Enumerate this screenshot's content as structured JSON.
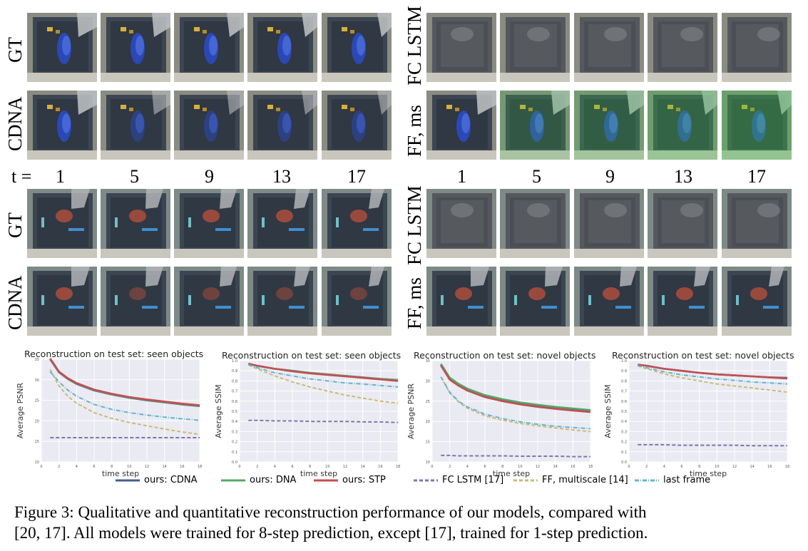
{
  "figure": {
    "row_labels_left": [
      "GT",
      "CDNA",
      "GT",
      "CDNA"
    ],
    "row_labels_right": [
      "FC LSTM",
      "FF, ms",
      "FC LSTM",
      "FF, ms"
    ],
    "t_prefix": "t =",
    "timesteps": [
      "1",
      "5",
      "9",
      "13",
      "17"
    ]
  },
  "colors": {
    "cdna": "#3f5e8c",
    "dna": "#55a868",
    "stp": "#c44e52",
    "fclstm": "#8172b2",
    "ff": "#ccb974",
    "last": "#64b5cd",
    "plot_bg": "#eaeaf2"
  },
  "chart_data": [
    {
      "type": "line",
      "title": "Reconstruction on test set: seen objects",
      "xlabel": "time step",
      "ylabel": "Average PSNR",
      "ylim": [
        10,
        35
      ],
      "xlim": [
        0,
        18
      ],
      "yticks": [
        "10",
        "15",
        "20",
        "25",
        "30",
        "35"
      ],
      "xticks": [
        "0",
        "2",
        "4",
        "6",
        "8",
        "10",
        "12",
        "14",
        "16",
        "18"
      ],
      "x": [
        1,
        2,
        3,
        4,
        6,
        8,
        10,
        12,
        14,
        16,
        18
      ],
      "series": [
        {
          "name": "ours: CDNA",
          "color": "cdna",
          "dash": "",
          "values": [
            35.0,
            31.8,
            30.2,
            29.0,
            27.4,
            26.4,
            25.6,
            25.0,
            24.5,
            24.0,
            23.6
          ]
        },
        {
          "name": "ours: DNA",
          "color": "dna",
          "dash": "",
          "values": [
            35.1,
            31.9,
            30.3,
            29.1,
            27.5,
            26.5,
            25.7,
            25.1,
            24.6,
            24.1,
            23.7
          ]
        },
        {
          "name": "ours: STP",
          "color": "stp",
          "dash": "",
          "values": [
            35.2,
            32.0,
            30.4,
            29.2,
            27.6,
            26.6,
            25.8,
            25.2,
            24.7,
            24.2,
            23.8
          ]
        },
        {
          "name": "FC LSTM [17]",
          "color": "fclstm",
          "dash": "5,3",
          "values": [
            15.9,
            15.9,
            15.9,
            15.9,
            15.9,
            15.9,
            15.9,
            15.9,
            15.9,
            15.9,
            15.9
          ]
        },
        {
          "name": "FF, multiscale [14]",
          "color": "ff",
          "dash": "5,3",
          "values": [
            32.5,
            28.5,
            26.0,
            24.3,
            22.0,
            20.6,
            19.6,
            18.8,
            18.0,
            17.3,
            16.7
          ]
        },
        {
          "name": "last frame",
          "color": "last",
          "dash": "6,2,1,2",
          "values": [
            32.0,
            29.5,
            27.5,
            26.0,
            24.0,
            22.8,
            22.0,
            21.4,
            20.9,
            20.5,
            20.1
          ]
        }
      ]
    },
    {
      "type": "line",
      "title": "Reconstruction on test set: seen objects",
      "xlabel": "time step",
      "ylabel": "Average SSIM",
      "ylim": [
        0.0,
        1.0
      ],
      "xlim": [
        0,
        18
      ],
      "yticks": [
        "0.0",
        "0.1",
        "0.2",
        "0.3",
        "0.4",
        "0.5",
        "0.6",
        "0.7",
        "0.8",
        "0.9",
        "1.0"
      ],
      "xticks": [
        "0",
        "2",
        "4",
        "6",
        "8",
        "10",
        "12",
        "14",
        "16",
        "18"
      ],
      "x": [
        1,
        2,
        4,
        6,
        8,
        10,
        12,
        14,
        16,
        18
      ],
      "series": [
        {
          "name": "ours: CDNA",
          "color": "cdna",
          "dash": "",
          "values": [
            0.97,
            0.95,
            0.92,
            0.9,
            0.88,
            0.865,
            0.85,
            0.835,
            0.82,
            0.81
          ]
        },
        {
          "name": "ours: DNA",
          "color": "dna",
          "dash": "",
          "values": [
            0.97,
            0.95,
            0.92,
            0.9,
            0.88,
            0.865,
            0.85,
            0.835,
            0.82,
            0.81
          ]
        },
        {
          "name": "ours: STP",
          "color": "stp",
          "dash": "",
          "values": [
            0.97,
            0.95,
            0.92,
            0.895,
            0.875,
            0.86,
            0.845,
            0.83,
            0.815,
            0.8
          ]
        },
        {
          "name": "FC LSTM [17]",
          "color": "fclstm",
          "dash": "5,3",
          "values": [
            0.41,
            0.41,
            0.405,
            0.405,
            0.4,
            0.4,
            0.4,
            0.395,
            0.395,
            0.39
          ]
        },
        {
          "name": "FF, multiscale [14]",
          "color": "ff",
          "dash": "5,3",
          "values": [
            0.96,
            0.92,
            0.85,
            0.79,
            0.74,
            0.7,
            0.66,
            0.63,
            0.6,
            0.58
          ]
        },
        {
          "name": "last frame",
          "color": "last",
          "dash": "6,2,1,2",
          "values": [
            0.96,
            0.93,
            0.88,
            0.85,
            0.82,
            0.8,
            0.78,
            0.77,
            0.755,
            0.74
          ]
        }
      ]
    },
    {
      "type": "line",
      "title": "Reconstruction on test set: novel objects",
      "xlabel": "time step",
      "ylabel": "Average PSNR",
      "ylim": [
        10,
        35
      ],
      "xlim": [
        0,
        18
      ],
      "yticks": [
        "10",
        "15",
        "20",
        "25",
        "30",
        "35"
      ],
      "xticks": [
        "0",
        "2",
        "4",
        "6",
        "8",
        "10",
        "12",
        "14",
        "16",
        "18"
      ],
      "x": [
        1,
        2,
        3,
        4,
        6,
        8,
        10,
        12,
        14,
        16,
        18
      ],
      "series": [
        {
          "name": "ours: CDNA",
          "color": "cdna",
          "dash": "",
          "values": [
            34.0,
            30.5,
            29.0,
            27.8,
            26.2,
            25.2,
            24.4,
            23.8,
            23.3,
            22.9,
            22.5
          ]
        },
        {
          "name": "ours: DNA",
          "color": "dna",
          "dash": "",
          "values": [
            34.2,
            30.8,
            29.3,
            28.1,
            26.5,
            25.5,
            24.7,
            24.1,
            23.6,
            23.2,
            22.8
          ]
        },
        {
          "name": "ours: STP",
          "color": "stp",
          "dash": "",
          "values": [
            33.8,
            30.3,
            28.8,
            27.6,
            26.0,
            25.0,
            24.2,
            23.6,
            23.1,
            22.7,
            22.3
          ]
        },
        {
          "name": "FC LSTM [17]",
          "color": "fclstm",
          "dash": "5,3",
          "values": [
            11.6,
            11.6,
            11.5,
            11.5,
            11.5,
            11.5,
            11.4,
            11.4,
            11.4,
            11.3,
            11.3
          ]
        },
        {
          "name": "FF, multiscale [14]",
          "color": "ff",
          "dash": "5,3",
          "values": [
            31.0,
            27.0,
            24.8,
            23.3,
            21.4,
            20.3,
            19.5,
            18.9,
            18.4,
            17.9,
            17.5
          ]
        },
        {
          "name": "last frame",
          "color": "last",
          "dash": "6,2,1,2",
          "values": [
            31.0,
            27.2,
            25.0,
            23.6,
            21.8,
            20.7,
            19.9,
            19.3,
            18.8,
            18.5,
            18.2
          ]
        }
      ]
    },
    {
      "type": "line",
      "title": "Reconstruction on test set: novel objects",
      "xlabel": "time step",
      "ylabel": "Average SSIM",
      "ylim": [
        0.0,
        1.0
      ],
      "xlim": [
        0,
        18
      ],
      "yticks": [
        "0.0",
        "0.1",
        "0.2",
        "0.3",
        "0.4",
        "0.5",
        "0.6",
        "0.7",
        "0.8",
        "0.9",
        "1.0"
      ],
      "xticks": [
        "0",
        "2",
        "4",
        "6",
        "8",
        "10",
        "12",
        "14",
        "16",
        "18"
      ],
      "x": [
        1,
        2,
        4,
        6,
        8,
        10,
        12,
        14,
        16,
        18
      ],
      "series": [
        {
          "name": "ours: CDNA",
          "color": "cdna",
          "dash": "",
          "values": [
            0.96,
            0.95,
            0.92,
            0.9,
            0.88,
            0.865,
            0.855,
            0.845,
            0.835,
            0.83
          ]
        },
        {
          "name": "ours: DNA",
          "color": "dna",
          "dash": "",
          "values": [
            0.96,
            0.95,
            0.92,
            0.9,
            0.88,
            0.865,
            0.855,
            0.845,
            0.835,
            0.825
          ]
        },
        {
          "name": "ours: STP",
          "color": "stp",
          "dash": "",
          "values": [
            0.96,
            0.95,
            0.92,
            0.9,
            0.88,
            0.865,
            0.855,
            0.845,
            0.835,
            0.825
          ]
        },
        {
          "name": "FC LSTM [17]",
          "color": "fclstm",
          "dash": "5,3",
          "values": [
            0.17,
            0.17,
            0.17,
            0.165,
            0.165,
            0.165,
            0.165,
            0.16,
            0.16,
            0.16
          ]
        },
        {
          "name": "FF, multiscale [14]",
          "color": "ff",
          "dash": "5,3",
          "values": [
            0.95,
            0.92,
            0.87,
            0.83,
            0.8,
            0.77,
            0.75,
            0.73,
            0.71,
            0.69
          ]
        },
        {
          "name": "last frame",
          "color": "last",
          "dash": "6,2,1,2",
          "values": [
            0.95,
            0.93,
            0.89,
            0.86,
            0.84,
            0.82,
            0.805,
            0.79,
            0.78,
            0.77
          ]
        }
      ]
    }
  ],
  "legend": [
    {
      "label": "ours: CDNA",
      "color": "cdna",
      "dash": ""
    },
    {
      "label": "ours: DNA",
      "color": "dna",
      "dash": ""
    },
    {
      "label": "ours: STP",
      "color": "stp",
      "dash": ""
    },
    {
      "label": "FC LSTM [17]",
      "color": "fclstm",
      "dash": "5,3"
    },
    {
      "label": "FF, multiscale [14]",
      "color": "ff",
      "dash": "5,3"
    },
    {
      "label": "last frame",
      "color": "last",
      "dash": "6,2,1,2"
    }
  ],
  "caption": {
    "line1": "Figure 3: Qualitative and quantitative reconstruction performance of our models, compared with",
    "line2": "[20, 17]. All models were trained for 8-step prediction, except [17], trained for 1-step prediction."
  }
}
